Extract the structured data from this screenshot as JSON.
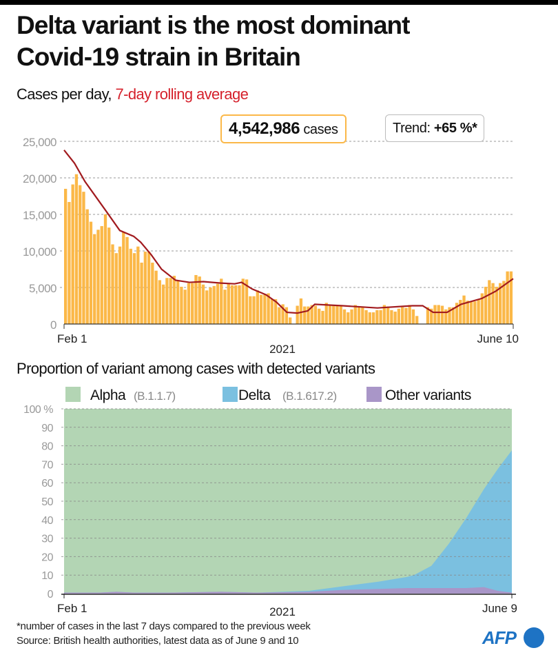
{
  "title_line1": "Delta variant is the most dominant",
  "title_line2": "Covid-19 strain in Britain",
  "subtitle_prefix": "Cases per day, ",
  "subtitle_red": "7-day rolling average",
  "total_cases_value": "4,542,986",
  "total_cases_unit": " cases",
  "trend_label": "Trend: ",
  "trend_value": "+65 %*",
  "section2_title": "Proportion of variant among cases with detected variants",
  "footnote": "*number of cases in the last 7 days compared to the previous week",
  "source": "Source: British health authorities, latest data as of June 9 and 10",
  "logo": "AFP",
  "colors": {
    "bar": "#fbb848",
    "line": "#a11a1e",
    "alpha": "#b3d5b4",
    "delta": "#7bc0e0",
    "other": "#a996c8",
    "grid": "#999999"
  },
  "chart_data": [
    {
      "type": "bar",
      "title": "Cases per day",
      "xlabel": "2021",
      "x_tick_labels": [
        "Feb 1",
        "June 10"
      ],
      "y_tick_labels": [
        "0",
        "5,000",
        "10,000",
        "15,000",
        "20,000",
        "25,000"
      ],
      "y_ticks": [
        0,
        5000,
        10000,
        15000,
        20000,
        25000
      ],
      "ylim": [
        0,
        25000
      ],
      "grid": true,
      "daily_cases_thousands": [
        18.5,
        16.7,
        19.1,
        20.5,
        19.0,
        18.1,
        15.7,
        14.0,
        12.3,
        12.9,
        13.4,
        15.0,
        13.2,
        10.9,
        9.7,
        10.6,
        12.6,
        11.9,
        10.3,
        9.7,
        10.6,
        8.4,
        9.9,
        9.9,
        8.4,
        7.3,
        6.0,
        5.4,
        6.3,
        6.3,
        6.6,
        5.9,
        5.1,
        4.7,
        5.6,
        5.6,
        6.7,
        6.5,
        5.4,
        4.6,
        5.0,
        5.2,
        5.5,
        6.2,
        4.7,
        5.6,
        5.3,
        5.3,
        5.3,
        6.2,
        6.1,
        3.8,
        3.8,
        4.6,
        4.0,
        4.0,
        4.2,
        3.4,
        3.4,
        2.3,
        2.7,
        2.3,
        0.9,
        null,
        2.5,
        3.5,
        2.4,
        2.4,
        2.6,
        2.5,
        2.1,
        1.8,
        2.9,
        2.5,
        2.5,
        2.6,
        2.6,
        2.0,
        1.6,
        2.0,
        2.6,
        2.4,
        2.3,
        1.9,
        1.6,
        1.6,
        1.9,
        1.9,
        2.6,
        2.4,
        1.9,
        1.7,
        2.1,
        2.3,
        2.2,
        2.6,
        2.0,
        1.1,
        null,
        null,
        2.3,
        2.1,
        2.6,
        2.6,
        2.5,
        2.0,
        2.3,
        2.3,
        2.9,
        3.3,
        3.9,
        3.2,
        3.1,
        3.1,
        3.4,
        4.2,
        5.1,
        6.0,
        5.6,
        5.1,
        5.6,
        5.9,
        7.2,
        7.2
      ],
      "rolling_average_thousands": [
        [
          0,
          23.8
        ],
        [
          3,
          22.0
        ],
        [
          6,
          19.5
        ],
        [
          12,
          15.5
        ],
        [
          16,
          12.8
        ],
        [
          20,
          12.0
        ],
        [
          22,
          11.2
        ],
        [
          25,
          9.5
        ],
        [
          28,
          7.5
        ],
        [
          32,
          6.0
        ],
        [
          36,
          5.7
        ],
        [
          40,
          5.8
        ],
        [
          45,
          5.6
        ],
        [
          49,
          5.5
        ],
        [
          51,
          5.7
        ],
        [
          54,
          4.8
        ],
        [
          58,
          4.0
        ],
        [
          61,
          3.0
        ],
        [
          64,
          1.6
        ],
        [
          67,
          1.5
        ],
        [
          70,
          1.8
        ],
        [
          72,
          2.7
        ],
        [
          80,
          2.5
        ],
        [
          90,
          2.2
        ],
        [
          100,
          2.5
        ],
        [
          103,
          2.5
        ],
        [
          106,
          1.6
        ],
        [
          110,
          1.6
        ],
        [
          114,
          2.7
        ],
        [
          120,
          3.5
        ],
        [
          124,
          4.5
        ],
        [
          129,
          6.2
        ]
      ]
    },
    {
      "type": "area",
      "title": "Proportion of variant among cases with detected variants",
      "xlabel": "2021",
      "x_tick_labels": [
        "Feb 1",
        "June 9"
      ],
      "y_tick_labels": [
        "0",
        "10",
        "20",
        "30",
        "40",
        "50",
        "60",
        "70",
        "80",
        "90",
        "100 %"
      ],
      "ylim": [
        0,
        100
      ],
      "grid": true,
      "legend": [
        {
          "name": "Alpha",
          "code": "(B.1.1.7)"
        },
        {
          "name": "Delta",
          "code": "(B.1.617.2)"
        },
        {
          "name": "Other variants",
          "code": ""
        }
      ],
      "days": [
        0,
        10,
        15,
        20,
        30,
        45,
        55,
        70,
        80,
        90,
        98,
        100,
        105,
        110,
        115,
        120,
        124,
        128
      ],
      "other_pct": [
        0.5,
        0.5,
        1,
        0.5,
        0.5,
        1,
        0.5,
        1,
        2,
        2.5,
        3,
        3,
        3,
        3,
        3,
        3.5,
        1.5,
        0.5
      ],
      "delta_pct": [
        0,
        0,
        0,
        0,
        0,
        0,
        0,
        0.5,
        2,
        4,
        6,
        7,
        12,
        24,
        38,
        53,
        66,
        77
      ]
    }
  ]
}
